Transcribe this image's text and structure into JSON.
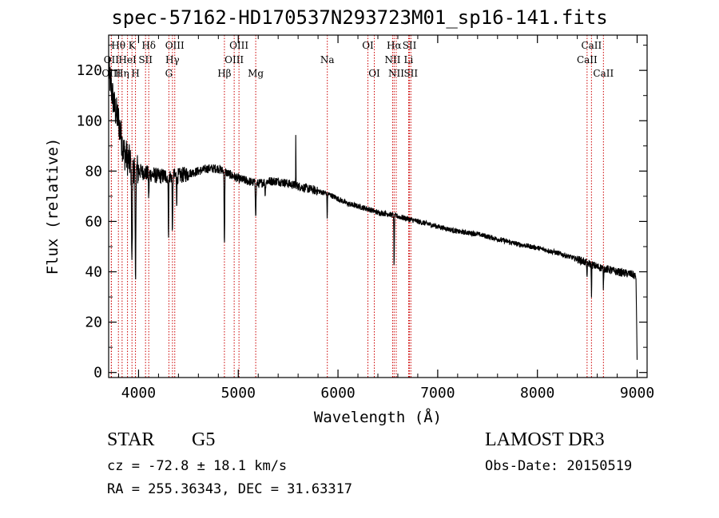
{
  "title": "spec-57162-HD170537N293723M01_sp16-141.fits",
  "info": {
    "object_class": "STAR",
    "subclass": "G5",
    "survey": "LAMOST DR3",
    "cz": "cz = -72.8 ± 18.1 km/s",
    "obs_date": "Obs-Date: 20150519",
    "radec": "RA = 255.36343, DEC =  31.63317"
  },
  "chart_data": {
    "type": "line",
    "title": "spec-57162-HD170537N293723M01_sp16-141.fits",
    "xlabel": "Wavelength (Å)",
    "ylabel": "Flux (relative)",
    "xlim": [
      3700,
      9100
    ],
    "ylim": [
      -2,
      134
    ],
    "x_ticks": [
      4000,
      5000,
      6000,
      7000,
      8000,
      9000
    ],
    "y_ticks": [
      0,
      20,
      40,
      60,
      80,
      100,
      120
    ],
    "line_color": "#000000",
    "marker_color": "#cc0000",
    "continuum": [
      [
        3700,
        120
      ],
      [
        3730,
        112
      ],
      [
        3760,
        105
      ],
      [
        3800,
        100
      ],
      [
        3850,
        88
      ],
      [
        3900,
        84
      ],
      [
        4000,
        80
      ],
      [
        4100,
        79
      ],
      [
        4200,
        78
      ],
      [
        4300,
        78
      ],
      [
        4400,
        78
      ],
      [
        4500,
        79
      ],
      [
        4600,
        80
      ],
      [
        4700,
        81
      ],
      [
        4800,
        81
      ],
      [
        4900,
        79
      ],
      [
        5000,
        77
      ],
      [
        5100,
        76
      ],
      [
        5200,
        75
      ],
      [
        5300,
        76
      ],
      [
        5400,
        76
      ],
      [
        5500,
        75
      ],
      [
        5600,
        74
      ],
      [
        5700,
        73
      ],
      [
        5800,
        72
      ],
      [
        5900,
        71
      ],
      [
        6000,
        69
      ],
      [
        6100,
        67
      ],
      [
        6200,
        66
      ],
      [
        6300,
        65
      ],
      [
        6400,
        63.5
      ],
      [
        6500,
        63
      ],
      [
        6600,
        62
      ],
      [
        6700,
        61
      ],
      [
        6800,
        60
      ],
      [
        6900,
        59
      ],
      [
        7000,
        58
      ],
      [
        7200,
        56
      ],
      [
        7400,
        55
      ],
      [
        7600,
        53
      ],
      [
        7800,
        51
      ],
      [
        8000,
        49.5
      ],
      [
        8200,
        47.5
      ],
      [
        8400,
        45
      ],
      [
        8600,
        42
      ],
      [
        8800,
        40
      ],
      [
        8950,
        39
      ],
      [
        8990,
        38
      ]
    ],
    "absorption_features": [
      {
        "center": 3934,
        "depth": 38,
        "width": 6
      },
      {
        "center": 3969,
        "depth": 40,
        "width": 6
      },
      {
        "center": 4102,
        "depth": 10,
        "width": 4
      },
      {
        "center": 4300,
        "depth": 22,
        "width": 4
      },
      {
        "center": 4340,
        "depth": 24,
        "width": 4
      },
      {
        "center": 4383,
        "depth": 10,
        "width": 3
      },
      {
        "center": 4861,
        "depth": 30,
        "width": 4
      },
      {
        "center": 5175,
        "depth": 12,
        "width": 5
      },
      {
        "center": 5270,
        "depth": 5,
        "width": 4
      },
      {
        "center": 5892,
        "depth": 10,
        "width": 3
      },
      {
        "center": 6563,
        "depth": 22,
        "width": 3
      },
      {
        "center": 8498,
        "depth": 7,
        "width": 3
      },
      {
        "center": 8542,
        "depth": 12,
        "width": 3
      },
      {
        "center": 8662,
        "depth": 8,
        "width": 3
      }
    ],
    "emission_features": [
      {
        "center": 5577,
        "height": 20,
        "width": 2
      }
    ],
    "line_markers": [
      {
        "label": "Hθ",
        "wavelength": 3798,
        "row": 1
      },
      {
        "label": "OII",
        "wavelength": 3727,
        "row": 2
      },
      {
        "label": "OIII",
        "wavelength": 3727,
        "row": 3
      },
      {
        "label": "HeI",
        "wavelength": 3889,
        "row": 2
      },
      {
        "label": "Hη",
        "wavelength": 3835,
        "row": 3
      },
      {
        "label": "K",
        "wavelength": 3934,
        "row": 1
      },
      {
        "label": "H",
        "wavelength": 3969,
        "row": 3
      },
      {
        "label": "SII",
        "wavelength": 4070,
        "row": 2
      },
      {
        "label": "Hδ",
        "wavelength": 4102,
        "row": 1
      },
      {
        "label": "OIII",
        "wavelength": 4363,
        "row": 1
      },
      {
        "label": "Hγ",
        "wavelength": 4340,
        "row": 2
      },
      {
        "label": "G",
        "wavelength": 4304,
        "row": 3
      },
      {
        "label": "Hβ",
        "wavelength": 4861,
        "row": 3
      },
      {
        "label": "OIII",
        "wavelength": 5007,
        "row": 1
      },
      {
        "label": "OIII",
        "wavelength": 4959,
        "row": 2
      },
      {
        "label": "Mg",
        "wavelength": 5175,
        "row": 3
      },
      {
        "label": "Na",
        "wavelength": 5893,
        "row": 2
      },
      {
        "label": "OI",
        "wavelength": 6300,
        "row": 1
      },
      {
        "label": "OI",
        "wavelength": 6364,
        "row": 3
      },
      {
        "label": "Hα",
        "wavelength": 6563,
        "row": 1
      },
      {
        "label": "NII",
        "wavelength": 6548,
        "row": 2
      },
      {
        "label": "NII",
        "wavelength": 6584,
        "row": 3
      },
      {
        "label": "SII",
        "wavelength": 6717,
        "row": 1
      },
      {
        "label": "Li",
        "wavelength": 6708,
        "row": 2
      },
      {
        "label": "SII",
        "wavelength": 6731,
        "row": 3
      },
      {
        "label": "CaII",
        "wavelength": 8542,
        "row": 1
      },
      {
        "label": "CaII",
        "wavelength": 8498,
        "row": 2
      },
      {
        "label": "CaII",
        "wavelength": 8662,
        "row": 3
      }
    ]
  }
}
